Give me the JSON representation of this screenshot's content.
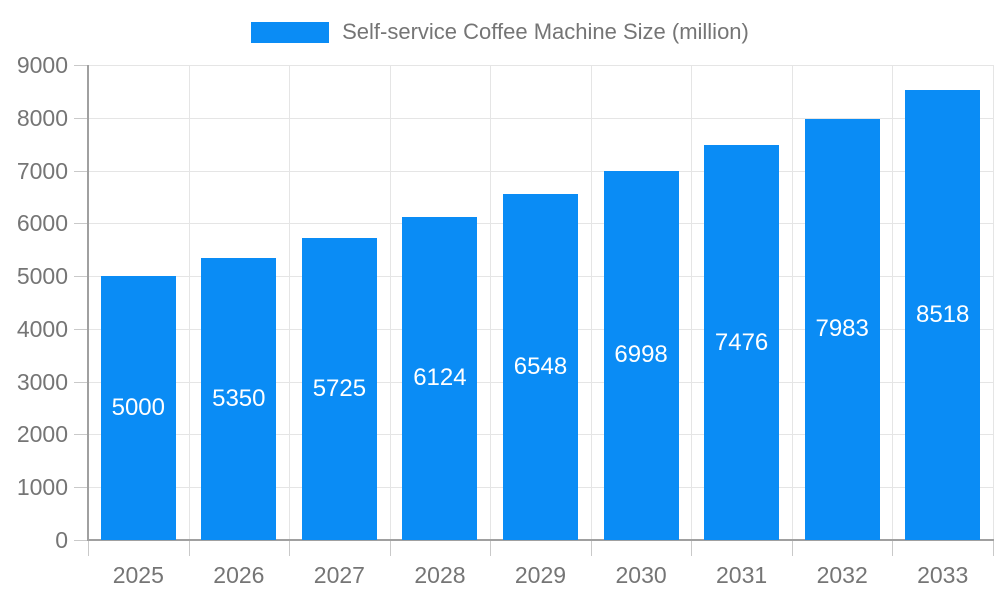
{
  "chart_data": {
    "type": "bar",
    "title": "Self-service Coffee Machine Size (million)",
    "categories": [
      "2025",
      "2026",
      "2027",
      "2028",
      "2029",
      "2030",
      "2031",
      "2032",
      "2033"
    ],
    "values": [
      5000,
      5350,
      5725,
      6124,
      6548,
      6998,
      7476,
      7983,
      8518
    ],
    "xlabel": "",
    "ylabel": "",
    "ylim": [
      0,
      9000
    ],
    "ytick_step": 1000,
    "grid": true,
    "legend_position": "top",
    "bar_labels": "inside-centered-white"
  },
  "colors": {
    "bar": "#0a8cf5",
    "bar_label": "#ffffff",
    "axis_text": "#757575",
    "grid_line": "#e5e5e5",
    "tick_line": "#c9c9c9",
    "axis_line": "#a0a0a0",
    "background": "#ffffff"
  }
}
